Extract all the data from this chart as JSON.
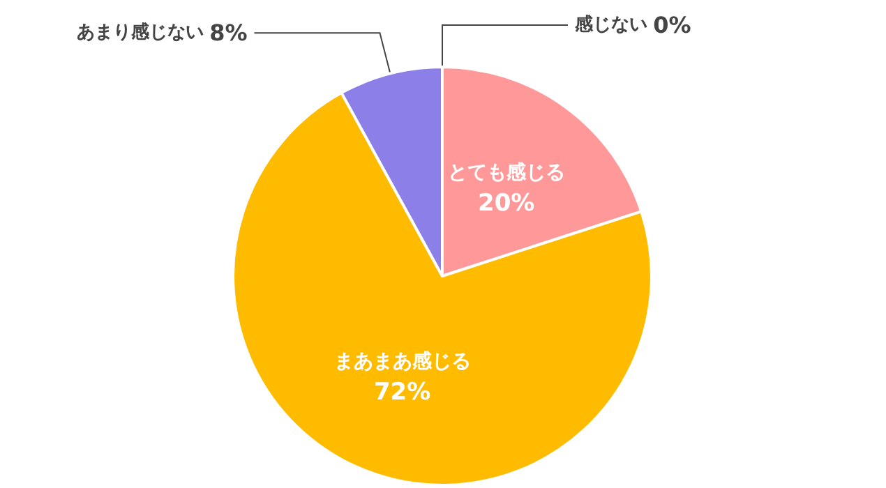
{
  "chart_data": {
    "type": "pie",
    "categories": [
      "とても感じる",
      "まあまあ感じる",
      "あまり感じない",
      "感じない"
    ],
    "values": [
      20,
      72,
      8,
      0
    ],
    "value_labels": [
      "20%",
      "72%",
      "8%",
      "0%"
    ],
    "colors": [
      "#ff9999",
      "#ffbb00",
      "#8c7fe8",
      "#a6a6a6"
    ],
    "legend": false
  }
}
